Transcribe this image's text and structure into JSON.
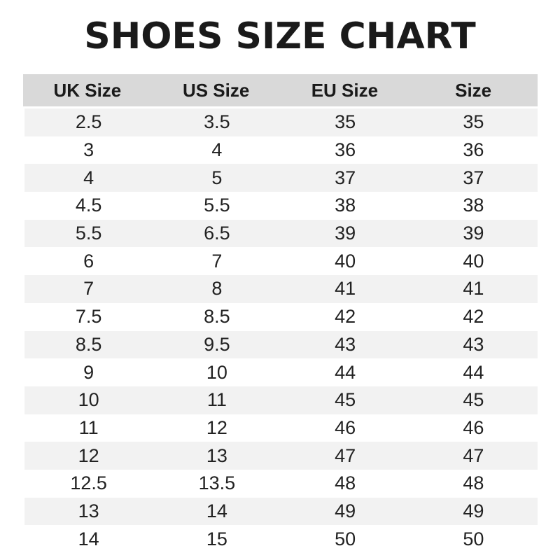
{
  "title": "SHOES SIZE CHART",
  "headers": [
    "UK Size",
    "US Size",
    "EU Size",
    "Size"
  ],
  "rows": [
    [
      "2.5",
      "3.5",
      "35",
      "35"
    ],
    [
      "3",
      "4",
      "36",
      "36"
    ],
    [
      "4",
      "5",
      "37",
      "37"
    ],
    [
      "4.5",
      "5.5",
      "38",
      "38"
    ],
    [
      "5.5",
      "6.5",
      "39",
      "39"
    ],
    [
      "6",
      "7",
      "40",
      "40"
    ],
    [
      "7",
      "8",
      "41",
      "41"
    ],
    [
      "7.5",
      "8.5",
      "42",
      "42"
    ],
    [
      "8.5",
      "9.5",
      "43",
      "43"
    ],
    [
      "9",
      "10",
      "44",
      "44"
    ],
    [
      "10",
      "11",
      "45",
      "45"
    ],
    [
      "11",
      "12",
      "46",
      "46"
    ],
    [
      "12",
      "13",
      "47",
      "47"
    ],
    [
      "12.5",
      "13.5",
      "48",
      "48"
    ],
    [
      "13",
      "14",
      "49",
      "49"
    ],
    [
      "14",
      "15",
      "50",
      "50"
    ]
  ]
}
